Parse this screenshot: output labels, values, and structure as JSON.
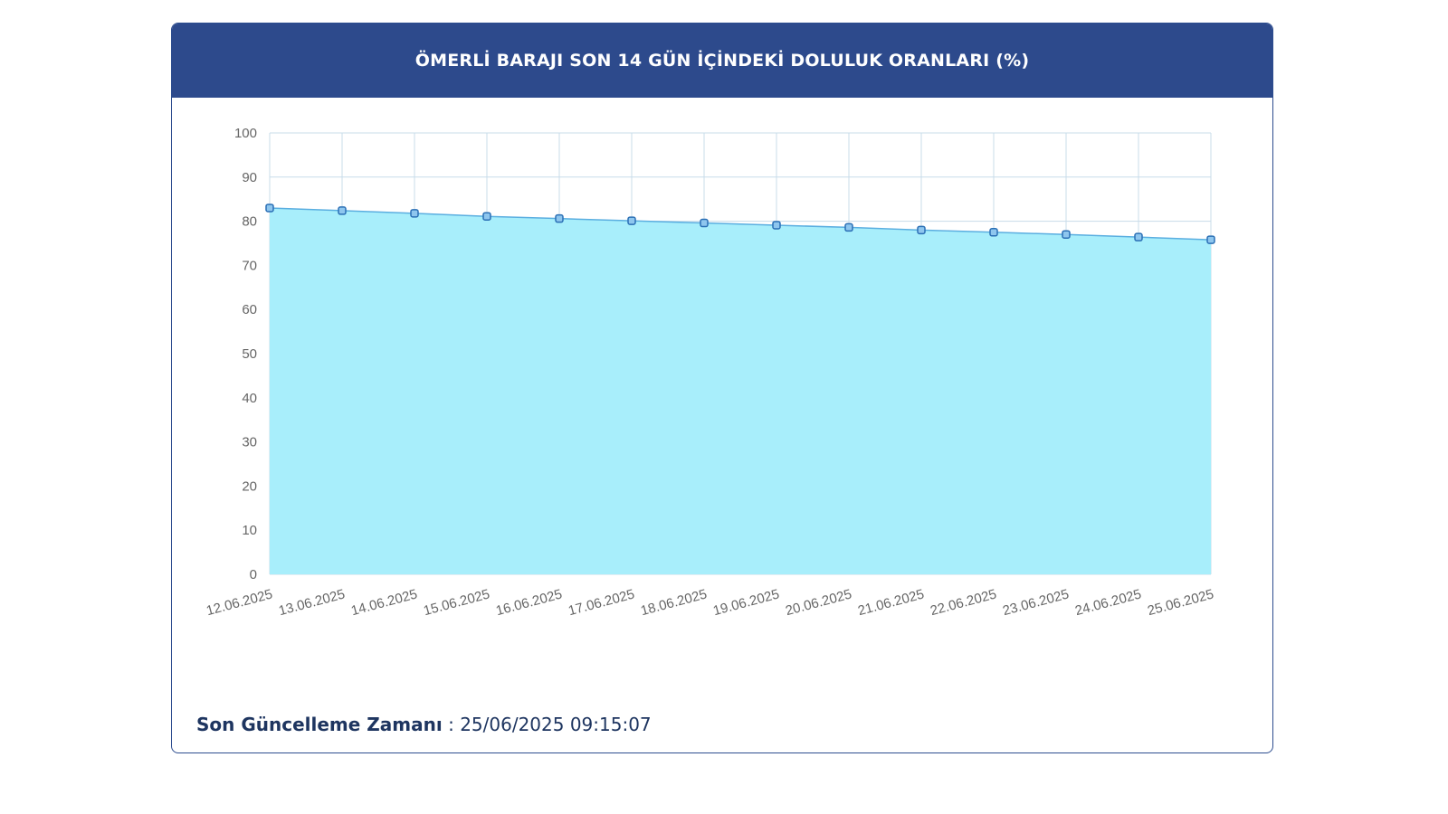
{
  "card": {
    "title": "ÖMERLİ BARAJI SON 14 GÜN İÇİNDEKİ DOLULUK ORANLARI (%)"
  },
  "footer": {
    "label": "Son Güncelleme Zamanı",
    "separator": " : ",
    "value": "25/06/2025 09:15:07"
  },
  "colors": {
    "header": "#2d4a8c",
    "area_fill": "#a8eefb",
    "line": "#5aaee0",
    "marker_fill": "#8ec6ee",
    "marker_stroke": "#2a6fb5",
    "grid": "#c8dcea",
    "footer_text": "#1e3560"
  },
  "chart_data": {
    "type": "area",
    "title": "ÖMERLİ BARAJI SON 14 GÜN İÇİNDEKİ DOLULUK ORANLARI (%)",
    "xlabel": "",
    "ylabel": "",
    "ylim": [
      0,
      100
    ],
    "yticks": [
      0,
      10,
      20,
      30,
      40,
      50,
      60,
      70,
      80,
      90,
      100
    ],
    "grid": true,
    "legend": "none",
    "categories": [
      "12.06.2025",
      "13.06.2025",
      "14.06.2025",
      "15.06.2025",
      "16.06.2025",
      "17.06.2025",
      "18.06.2025",
      "19.06.2025",
      "20.06.2025",
      "21.06.2025",
      "22.06.2025",
      "23.06.2025",
      "24.06.2025",
      "25.06.2025"
    ],
    "series": [
      {
        "values": [
          83.0,
          82.4,
          81.8,
          81.1,
          80.6,
          80.1,
          79.6,
          79.1,
          78.6,
          78.0,
          77.5,
          77.0,
          76.4,
          75.8
        ]
      }
    ]
  }
}
